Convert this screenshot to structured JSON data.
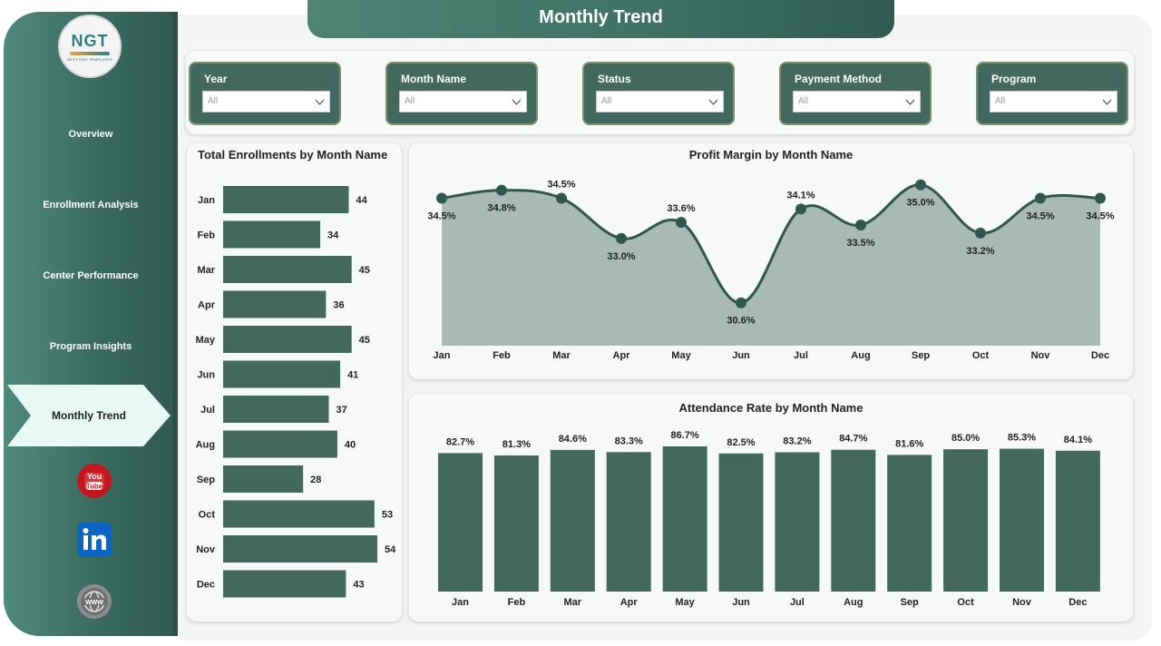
{
  "header": {
    "title": "Monthly Trend"
  },
  "logo": {
    "text": "NGT",
    "sub": "NEXT GEN TEMPLATES"
  },
  "nav": {
    "items": [
      "Overview",
      "Enrollment Analysis",
      "Center Performance",
      "Program Insights"
    ],
    "active": "Monthly Trend"
  },
  "social": [
    "youtube-icon",
    "linkedin-icon",
    "globe-icon"
  ],
  "filters": [
    {
      "label": "Year",
      "value": "All"
    },
    {
      "label": "Month Name",
      "value": "All"
    },
    {
      "label": "Status",
      "value": "All"
    },
    {
      "label": "Payment Method",
      "value": "All"
    },
    {
      "label": "Program",
      "value": "All"
    }
  ],
  "colors": {
    "accent": "#43695f",
    "area_fill": "#a9b9b4",
    "line": "#30574d",
    "sidebar": "#3a6a5e"
  },
  "chart_data": [
    {
      "type": "bar",
      "orientation": "horizontal",
      "title": "Total Enrollments by Month Name",
      "categories": [
        "Jan",
        "Feb",
        "Mar",
        "Apr",
        "May",
        "Jun",
        "Jul",
        "Aug",
        "Sep",
        "Oct",
        "Nov",
        "Dec"
      ],
      "values": [
        44,
        34,
        45,
        36,
        45,
        41,
        37,
        40,
        28,
        53,
        54,
        43
      ],
      "labels": [
        "44",
        "34",
        "45",
        "36",
        "45",
        "41",
        "37",
        "40",
        "28",
        "53",
        "54",
        "43"
      ]
    },
    {
      "type": "area",
      "title": "Profit Margin by Month Name",
      "categories": [
        "Jan",
        "Feb",
        "Mar",
        "Apr",
        "May",
        "Jun",
        "Jul",
        "Aug",
        "Sep",
        "Oct",
        "Nov",
        "Dec"
      ],
      "values": [
        34.5,
        34.8,
        34.5,
        33.0,
        33.6,
        30.6,
        34.1,
        33.5,
        35.0,
        33.2,
        34.5,
        34.5
      ],
      "labels": [
        "34.5%",
        "34.8%",
        "34.5%",
        "33.0%",
        "33.6%",
        "30.6%",
        "34.1%",
        "33.5%",
        "35.0%",
        "33.2%",
        "34.5%",
        "34.5%"
      ],
      "label_position": [
        "below",
        "below",
        "above",
        "below",
        "above",
        "below",
        "above",
        "below",
        "below",
        "below",
        "below",
        "below"
      ],
      "ylim": [
        29,
        35.6
      ]
    },
    {
      "type": "bar",
      "orientation": "vertical",
      "title": "Attendance Rate by Month Name",
      "categories": [
        "Jan",
        "Feb",
        "Mar",
        "Apr",
        "May",
        "Jun",
        "Jul",
        "Aug",
        "Sep",
        "Oct",
        "Nov",
        "Dec"
      ],
      "values": [
        82.7,
        81.3,
        84.6,
        83.3,
        86.7,
        82.5,
        83.2,
        84.7,
        81.6,
        85.0,
        85.3,
        84.1
      ],
      "labels": [
        "82.7%",
        "81.3%",
        "84.6%",
        "83.3%",
        "86.7%",
        "82.5%",
        "83.2%",
        "84.7%",
        "81.6%",
        "85.0%",
        "85.3%",
        "84.1%"
      ],
      "ylim": [
        0,
        86.7
      ]
    }
  ]
}
